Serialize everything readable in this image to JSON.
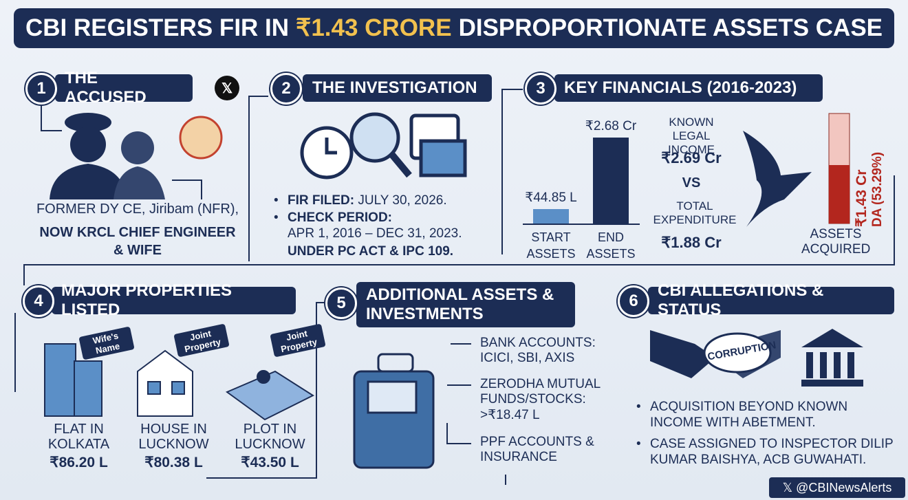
{
  "header": {
    "title_parts": [
      "CBI REGISTERS FIR IN",
      "₹1.43 CRORE",
      "DISPROPORTIONATE ASSETS CASE"
    ]
  },
  "sections": [
    {
      "number": "1",
      "heading": "THE ACCUSED",
      "lines": [
        "FORMER DY CE, Jiribam (NFR),",
        "NOW KRCL CHIEF ENGINEER",
        "& WIFE"
      ]
    },
    {
      "number": "2",
      "heading": "THE INVESTIGATION",
      "items": [
        {
          "label": "FIR FILED:",
          "text": "JULY 30, 2026."
        },
        {
          "label": "CHECK PERIOD:",
          "text": "APR 1, 2016 – DEC 31, 2023."
        }
      ],
      "note": "UNDER PC ACT & IPC 109."
    },
    {
      "number": "3",
      "heading": "KEY FINANCIALS (2016-2023)",
      "chart": {
        "type": "bar",
        "categories": [
          "START ASSETS",
          "END ASSETS"
        ],
        "values": [
          44.85,
          268
        ],
        "value_labels": [
          "₹44.85 L",
          "₹2.68 Cr"
        ],
        "colors": [
          "#5b8fc7",
          "#1c2d55"
        ]
      },
      "income_label": "KNOWN LEGAL INCOME",
      "income": "₹2.69 Cr",
      "vs": "VS",
      "expenditure_label": "TOTAL EXPENDITURE",
      "expenditure": "₹1.88 Cr",
      "da": "₹1.43 Cr",
      "da_pct": "DA (53.29%)",
      "assets_label": "ASSETS ACQUIRED"
    },
    {
      "number": "4",
      "heading": "MAJOR PROPERTIES LISTED",
      "properties": [
        {
          "tag": "Wife's Name",
          "name": "FLAT IN KOLKATA",
          "value": "₹86.20 L"
        },
        {
          "tag": "Joint Property",
          "name": "HOUSE IN LUCKNOW",
          "value": "₹80.38 L"
        },
        {
          "tag": "Joint Property",
          "name": "PLOT IN LUCKNOW",
          "value": "₹43.50 L"
        }
      ]
    },
    {
      "number": "5",
      "heading": "ADDITIONAL ASSETS & INVESTMENTS",
      "items": [
        "BANK ACCOUNTS: ICICI, SBI, AXIS",
        "ZERODHA MUTUAL FUNDS/STOCKS: >₹18.47 L",
        "PPF ACCOUNTS & INSURANCE"
      ]
    },
    {
      "number": "6",
      "heading": "CBI ALLEGATIONS & STATUS",
      "stamp": "CORRUPTION",
      "items": [
        "ACQUISITION BEYOND KNOWN INCOME WITH ABETMENT.",
        "CASE ASSIGNED TO INSPECTOR DILIP KUMAR BAISHYA, ACB GUWAHATI."
      ]
    }
  ],
  "footer": {
    "handle": "@CBINewsAlerts"
  }
}
